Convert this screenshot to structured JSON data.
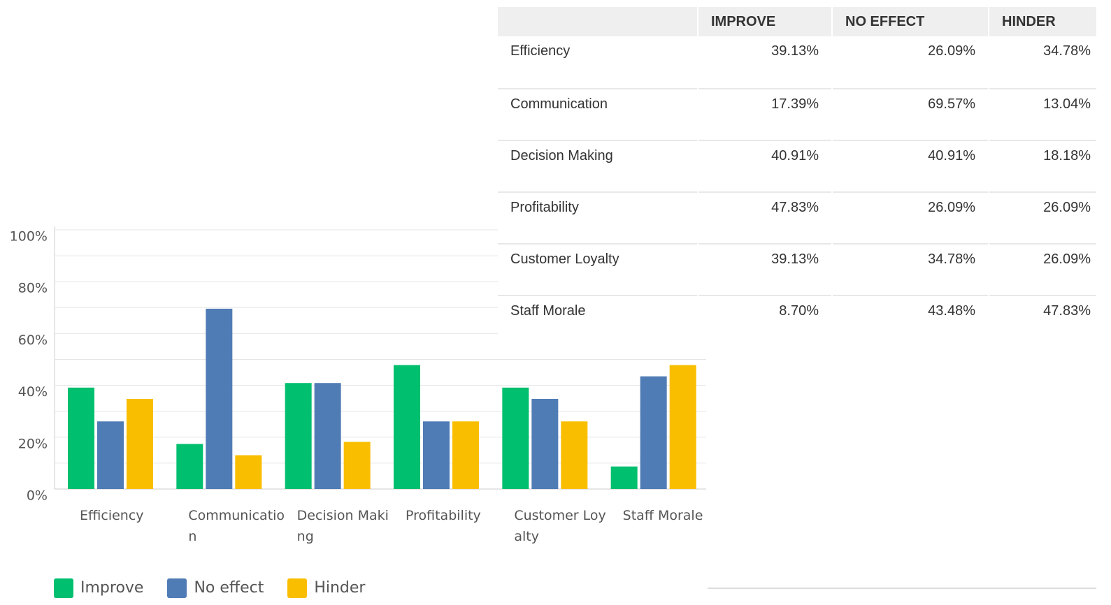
{
  "chart_data": {
    "type": "bar",
    "categories": [
      "Efficiency",
      "Communication",
      "Decision Making",
      "Profitability",
      "Customer Loyalty",
      "Staff Morale"
    ],
    "series": [
      {
        "name": "Improve",
        "color": "#00bf6f",
        "values": [
          39.13,
          17.39,
          40.91,
          47.83,
          39.13,
          8.7
        ]
      },
      {
        "name": "No effect",
        "color": "#507cb6",
        "values": [
          26.09,
          69.57,
          40.91,
          26.09,
          34.78,
          43.48
        ]
      },
      {
        "name": "Hinder",
        "color": "#f9be00",
        "values": [
          34.78,
          13.04,
          18.18,
          26.09,
          26.09,
          47.83
        ]
      }
    ],
    "ylim": [
      0,
      100
    ],
    "yticks": [
      {
        "value": 0,
        "label": "0%"
      },
      {
        "value": 20,
        "label": "20%"
      },
      {
        "value": 40,
        "label": "40%"
      },
      {
        "value": 60,
        "label": "60%"
      },
      {
        "value": 80,
        "label": "80%"
      },
      {
        "value": 100,
        "label": "100%"
      }
    ],
    "minor_yticks": [
      10,
      30,
      50,
      70,
      90
    ],
    "grid": true,
    "legend": "bottom-left"
  },
  "table": {
    "headers": [
      "IMPROVE",
      "NO EFFECT",
      "HINDER"
    ],
    "rows": [
      [
        "Efficiency",
        "39.13%",
        "26.09%",
        "34.78%"
      ],
      [
        "Communication",
        "17.39%",
        "69.57%",
        "13.04%"
      ],
      [
        "Decision Making",
        "40.91%",
        "40.91%",
        "18.18%"
      ],
      [
        "Profitability",
        "47.83%",
        "26.09%",
        "26.09%"
      ],
      [
        "Customer Loyalty",
        "39.13%",
        "34.78%",
        "26.09%"
      ],
      [
        "Staff Morale",
        "8.70%",
        "43.48%",
        "47.83%"
      ]
    ]
  }
}
